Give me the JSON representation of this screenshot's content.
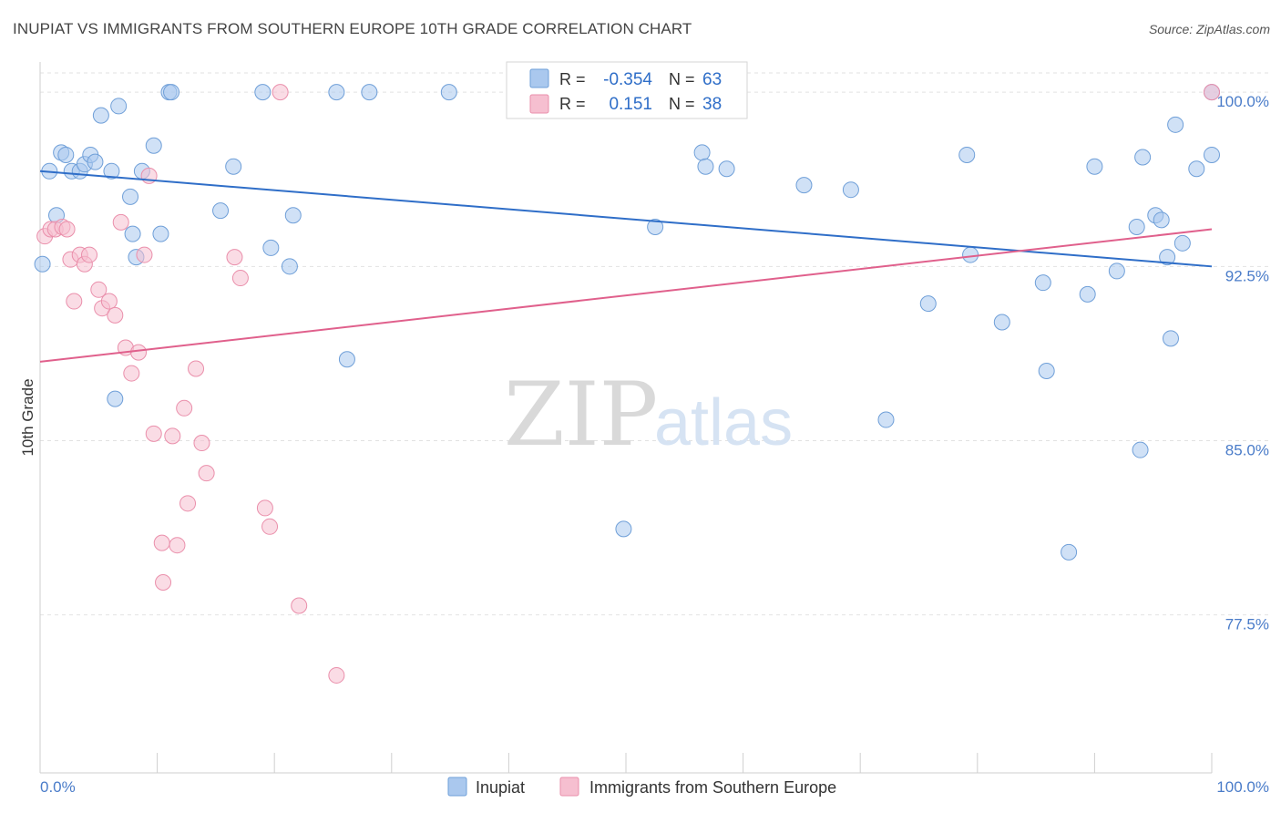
{
  "title": "INUPIAT VS IMMIGRANTS FROM SOUTHERN EUROPE 10TH GRADE CORRELATION CHART",
  "source": "Source: ZipAtlas.com",
  "watermark": {
    "part1": "ZIP",
    "part2": "atlas"
  },
  "colors": {
    "inupiat_fill": "#aac8ee",
    "inupiat_stroke": "#6f9fd8",
    "inupiat_line": "#2f6ec8",
    "immigrants_fill": "#f6bfd0",
    "immigrants_stroke": "#ea8fab",
    "immigrants_line": "#e0608c",
    "tick_text": "#4a7cc9",
    "grid": "#e2e2e2"
  },
  "legend": {
    "rows": [
      {
        "r_label": "R =",
        "r_value": "-0.354",
        "n_label": "N =",
        "n_value": "63"
      },
      {
        "r_label": "R =",
        "r_value": "0.151",
        "n_label": "N =",
        "n_value": "38"
      }
    ]
  },
  "chart_data": {
    "type": "scatter",
    "title": "INUPIAT VS IMMIGRANTS FROM SOUTHERN EUROPE 10TH GRADE CORRELATION CHART",
    "xlabel": "",
    "ylabel": "10th Grade",
    "xlim": [
      0,
      100
    ],
    "ylim": [
      70.7,
      101.3
    ],
    "x_tick_labels": [
      "0.0%",
      "100.0%"
    ],
    "y_ticks": [
      {
        "value": 100.0,
        "label": "100.0%"
      },
      {
        "value": 92.5,
        "label": "92.5%"
      },
      {
        "value": 85.0,
        "label": "85.0%"
      },
      {
        "value": 77.5,
        "label": "77.5%"
      }
    ],
    "grid": true,
    "series": [
      {
        "name": "Inupiat",
        "trend": {
          "x": [
            0,
            100
          ],
          "y": [
            96.6,
            92.5
          ]
        },
        "points": [
          [
            0.2,
            92.6
          ],
          [
            0.8,
            96.6
          ],
          [
            1.4,
            94.7
          ],
          [
            1.8,
            97.4
          ],
          [
            2.2,
            97.3
          ],
          [
            2.7,
            96.6
          ],
          [
            3.4,
            96.6
          ],
          [
            3.8,
            96.9
          ],
          [
            4.3,
            97.3
          ],
          [
            4.7,
            97.0
          ],
          [
            5.2,
            99.0
          ],
          [
            6.1,
            96.6
          ],
          [
            6.4,
            86.8
          ],
          [
            6.7,
            99.4
          ],
          [
            7.7,
            95.5
          ],
          [
            7.9,
            93.9
          ],
          [
            8.2,
            92.9
          ],
          [
            8.7,
            96.6
          ],
          [
            9.7,
            97.7
          ],
          [
            10.3,
            93.9
          ],
          [
            11.0,
            100.0
          ],
          [
            11.2,
            100.0
          ],
          [
            15.4,
            94.9
          ],
          [
            16.5,
            96.8
          ],
          [
            19.0,
            100.0
          ],
          [
            19.7,
            93.3
          ],
          [
            21.3,
            92.5
          ],
          [
            21.6,
            94.7
          ],
          [
            25.3,
            100.0
          ],
          [
            26.2,
            88.5
          ],
          [
            28.1,
            100.0
          ],
          [
            34.9,
            100.0
          ],
          [
            47.2,
            100.0
          ],
          [
            49.8,
            81.2
          ],
          [
            52.5,
            94.2
          ],
          [
            56.5,
            97.4
          ],
          [
            56.8,
            96.8
          ],
          [
            58.6,
            96.7
          ],
          [
            65.2,
            96.0
          ],
          [
            69.2,
            95.8
          ],
          [
            72.2,
            85.9
          ],
          [
            75.8,
            90.9
          ],
          [
            79.1,
            97.3
          ],
          [
            79.4,
            93.0
          ],
          [
            82.1,
            90.1
          ],
          [
            85.6,
            91.8
          ],
          [
            85.9,
            88.0
          ],
          [
            87.8,
            80.2
          ],
          [
            89.4,
            91.3
          ],
          [
            90.0,
            96.8
          ],
          [
            91.9,
            92.3
          ],
          [
            93.6,
            94.2
          ],
          [
            93.9,
            84.6
          ],
          [
            94.1,
            97.2
          ],
          [
            95.2,
            94.7
          ],
          [
            95.7,
            94.5
          ],
          [
            96.2,
            92.9
          ],
          [
            96.5,
            89.4
          ],
          [
            96.9,
            98.6
          ],
          [
            97.5,
            93.5
          ],
          [
            98.7,
            96.7
          ],
          [
            100.0,
            97.3
          ],
          [
            100.0,
            100.0
          ]
        ]
      },
      {
        "name": "Immigrants from Southern Europe",
        "trend": {
          "x": [
            0,
            100
          ],
          "y": [
            88.4,
            94.1
          ]
        },
        "points": [
          [
            0.4,
            93.8
          ],
          [
            0.9,
            94.1
          ],
          [
            1.3,
            94.1
          ],
          [
            1.9,
            94.2
          ],
          [
            2.3,
            94.1
          ],
          [
            2.6,
            92.8
          ],
          [
            2.9,
            91.0
          ],
          [
            3.4,
            93.0
          ],
          [
            3.8,
            92.6
          ],
          [
            4.2,
            93.0
          ],
          [
            5.0,
            91.5
          ],
          [
            5.3,
            90.7
          ],
          [
            5.9,
            91.0
          ],
          [
            6.4,
            90.4
          ],
          [
            6.9,
            94.4
          ],
          [
            7.3,
            89.0
          ],
          [
            7.8,
            87.9
          ],
          [
            8.4,
            88.8
          ],
          [
            8.9,
            93.0
          ],
          [
            9.3,
            96.4
          ],
          [
            9.7,
            85.3
          ],
          [
            10.4,
            80.6
          ],
          [
            10.5,
            78.9
          ],
          [
            11.3,
            85.2
          ],
          [
            11.7,
            80.5
          ],
          [
            12.3,
            86.4
          ],
          [
            12.6,
            82.3
          ],
          [
            13.3,
            88.1
          ],
          [
            13.8,
            84.9
          ],
          [
            14.2,
            83.6
          ],
          [
            16.6,
            92.9
          ],
          [
            17.1,
            92.0
          ],
          [
            19.2,
            82.1
          ],
          [
            19.6,
            81.3
          ],
          [
            20.5,
            100.0
          ],
          [
            22.1,
            77.9
          ],
          [
            25.3,
            74.9
          ],
          [
            100.0,
            100.0
          ]
        ]
      }
    ],
    "legend_entries": [
      "Inupiat",
      "Immigrants from Southern Europe"
    ]
  }
}
